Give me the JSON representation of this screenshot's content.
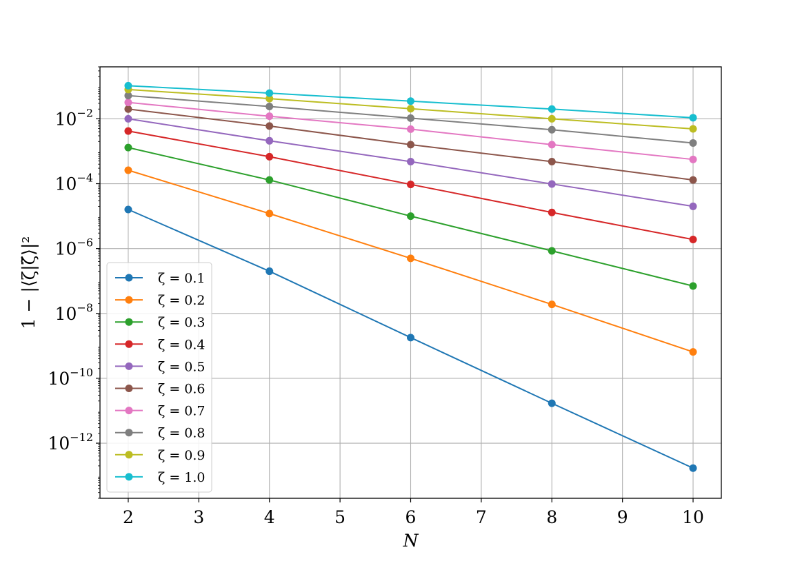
{
  "chart_data": {
    "type": "line",
    "xlabel": "N",
    "ylabel": "1 − |⟨ζ|ζ̃⟩|²",
    "yscale": "log",
    "xlim": [
      1.6,
      10.4
    ],
    "ylim": [
      2e-14,
      0.4
    ],
    "grid": true,
    "legend_position": "lower-left",
    "x": [
      2,
      4,
      6,
      8,
      10
    ],
    "xticks": [
      "2",
      "3",
      "4",
      "5",
      "6",
      "7",
      "8",
      "9",
      "10"
    ],
    "yticks": [
      {
        "value": 0.01,
        "base": "10",
        "exp": "−2"
      },
      {
        "value": 0.0001,
        "base": "10",
        "exp": "−4"
      },
      {
        "value": 1e-06,
        "base": "10",
        "exp": "−6"
      },
      {
        "value": 1e-08,
        "base": "10",
        "exp": "−8"
      },
      {
        "value": 1e-10,
        "base": "10",
        "exp": "−10"
      },
      {
        "value": 1e-12,
        "base": "10",
        "exp": "−12"
      }
    ],
    "series": [
      {
        "name": "ζ = 0.1",
        "color": "#1f77b4",
        "values": [
          1.6e-05,
          2e-07,
          1.8e-09,
          1.7e-11,
          1.7e-13
        ]
      },
      {
        "name": "ζ = 0.2",
        "color": "#ff7f0e",
        "values": [
          0.00026,
          1.2e-05,
          5e-07,
          1.9e-08,
          6.5e-10
        ]
      },
      {
        "name": "ζ = 0.3",
        "color": "#2ca02c",
        "values": [
          0.0013,
          0.00013,
          1e-05,
          8.5e-07,
          7e-08
        ]
      },
      {
        "name": "ζ = 0.4",
        "color": "#d62728",
        "values": [
          0.0042,
          0.00068,
          9.5e-05,
          1.3e-05,
          1.9e-06
        ]
      },
      {
        "name": "ζ = 0.5",
        "color": "#9467bd",
        "values": [
          0.01,
          0.0021,
          0.00048,
          9.8e-05,
          2e-05
        ]
      },
      {
        "name": "ζ = 0.6",
        "color": "#8c564b",
        "values": [
          0.02,
          0.006,
          0.0016,
          0.00048,
          0.00013
        ]
      },
      {
        "name": "ζ = 0.7",
        "color": "#e377c2",
        "values": [
          0.032,
          0.012,
          0.0048,
          0.0016,
          0.00056
        ]
      },
      {
        "name": "ζ = 0.8",
        "color": "#7f7f7f",
        "values": [
          0.052,
          0.024,
          0.0105,
          0.0046,
          0.0018
        ]
      },
      {
        "name": "ζ = 0.9",
        "color": "#bcbd22",
        "values": [
          0.08,
          0.042,
          0.0205,
          0.01,
          0.0049
        ]
      },
      {
        "name": "ζ = 1.0",
        "color": "#17becf",
        "values": [
          0.105,
          0.062,
          0.035,
          0.02,
          0.0108
        ]
      }
    ]
  }
}
